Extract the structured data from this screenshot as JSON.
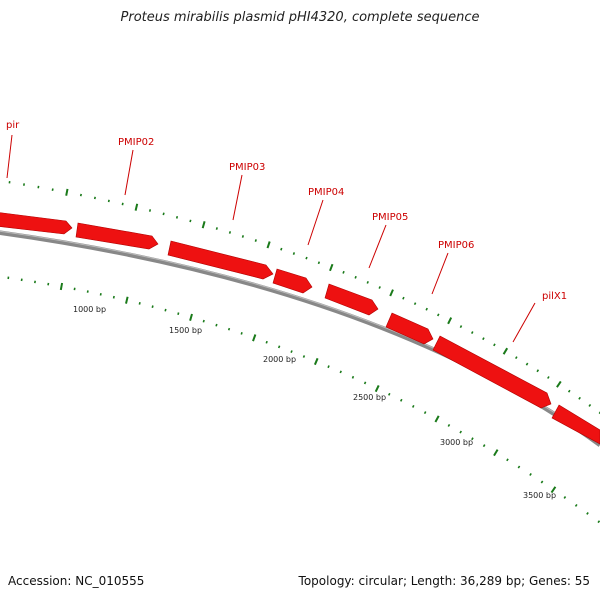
{
  "title": "Proteus mirabilis plasmid pHI4320, complete sequence",
  "accession": "Accession: NC_010555",
  "summary": "Topology: circular; Length: 36,289 bp; Genes: 55",
  "colors": {
    "gene": "#ee1111",
    "gene_edge": "#b00000",
    "backbone": "#888888",
    "tick": "#1a7a1a",
    "label": "#cc0000"
  },
  "genes": [
    {
      "name": "pir"
    },
    {
      "name": "PMIP02"
    },
    {
      "name": "PMIP03"
    },
    {
      "name": "PMIP04"
    },
    {
      "name": "PMIP05"
    },
    {
      "name": "PMIP06"
    },
    {
      "name": "pilX1"
    }
  ],
  "bp_labels": [
    "1000 bp",
    "1500 bp",
    "2000 bp",
    "2500 bp",
    "3000 bp",
    "3500 bp"
  ]
}
